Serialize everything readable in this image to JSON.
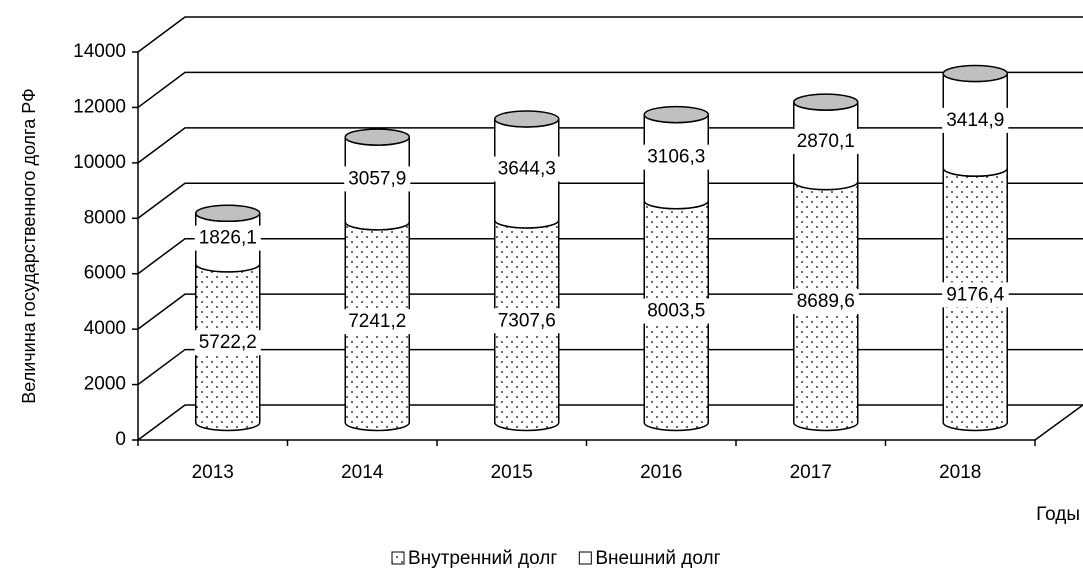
{
  "chart_data": {
    "type": "bar3d-stacked-cylinder",
    "y_label": "Величина государственного долга РФ",
    "x_label": "Годы",
    "categories": [
      "2013",
      "2014",
      "2015",
      "2016",
      "2017",
      "2018"
    ],
    "series": [
      {
        "name": "Внутренний долг",
        "color": "#ffffff",
        "pattern": "dots",
        "values": [
          5722.2,
          7241.2,
          7307.6,
          8003.5,
          8689.6,
          9176.4
        ],
        "value_labels": [
          "5722,2",
          "7241,2",
          "7307,6",
          "8003,5",
          "8689,6",
          "9176,4"
        ]
      },
      {
        "name": "Внешний долг",
        "color": "#ffffff",
        "pattern": "none",
        "values": [
          1826.1,
          3057.9,
          3644.3,
          3106.3,
          2870.1,
          3414.9
        ],
        "value_labels": [
          "1826,1",
          "3057,9",
          "3644,3",
          "3106,3",
          "2870,1",
          "3414,9"
        ]
      }
    ],
    "ylim": [
      0,
      14000
    ],
    "yticks": [
      0,
      2000,
      4000,
      6000,
      8000,
      10000,
      12000,
      14000
    ],
    "grid": true,
    "legend": "bottom"
  }
}
